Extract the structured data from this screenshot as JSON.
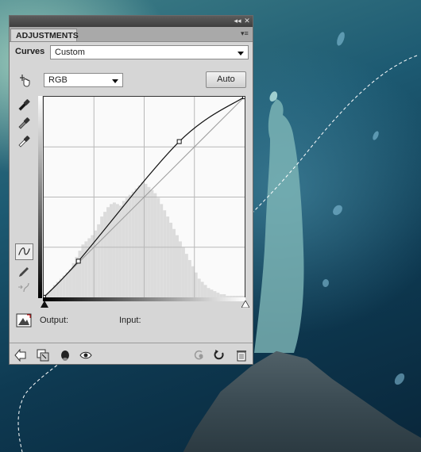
{
  "panel": {
    "tab_label": "ADJUSTMENTS",
    "collapse_icon": "double-chevron-icon",
    "close_icon": "close-icon",
    "menu_icon": "panel-menu-icon",
    "adjustment_name": "Curves",
    "preset": "Custom",
    "channel": "RGB",
    "auto_label": "Auto",
    "output_label": "Output:",
    "input_label": "Input:"
  },
  "tools": [
    "on-image-adjust-icon",
    "black-point-eyedropper-icon",
    "gray-point-eyedropper-icon",
    "white-point-eyedropper-icon",
    "curve-point-tool-icon",
    "pencil-draw-icon",
    "smooth-curve-icon",
    "clipping-warning-icon"
  ],
  "bottom_icons": [
    "back-arrow-icon",
    "clip-to-layer-icon",
    "visibility-state-icon",
    "eye-icon",
    "previous-state-icon",
    "reset-icon",
    "trash-icon"
  ],
  "colors": {
    "panel_bg": "#d6d6d6",
    "curve": "#111111",
    "histogram": "#dcdcdc",
    "grid": "#b8b8b8"
  },
  "chart_data": {
    "type": "line",
    "xlim": [
      0,
      255
    ],
    "ylim": [
      0,
      255
    ],
    "grid": true,
    "series": [
      {
        "points": [
          [
            0,
            0
          ],
          [
            44,
            46
          ],
          [
            172,
            198
          ],
          [
            255,
            255
          ]
        ]
      }
    ],
    "baseline": [
      [
        0,
        0
      ],
      [
        255,
        255
      ]
    ],
    "histogram": [
      2,
      3,
      5,
      8,
      10,
      12,
      14,
      16,
      18,
      22,
      26,
      30,
      34,
      36,
      38,
      40,
      43,
      47,
      52,
      55,
      58,
      60,
      61,
      60,
      59,
      62,
      64,
      66,
      68,
      70,
      72,
      74,
      73,
      71,
      69,
      67,
      64,
      60,
      56,
      52,
      48,
      44,
      40,
      36,
      32,
      28,
      24,
      20,
      16,
      12,
      10,
      8,
      6,
      5,
      4,
      3,
      2,
      2,
      1,
      1,
      1,
      1,
      1,
      1
    ]
  }
}
